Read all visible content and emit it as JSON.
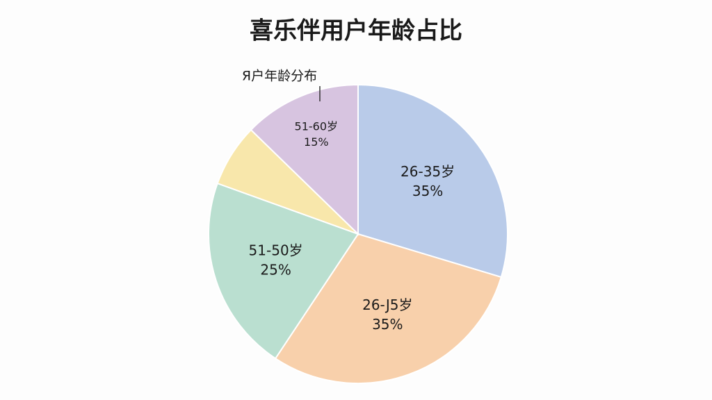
{
  "chart_data": {
    "type": "pie",
    "title": "喜乐伴用户年龄占比",
    "annotation": "Я户年龄分布",
    "categories": [
      "26-35岁",
      "26-J5岁",
      "51-50岁",
      null,
      "51-60岁"
    ],
    "values": [
      35,
      35,
      25,
      8,
      15
    ],
    "value_labels": [
      "35%",
      "35%",
      "25%",
      null,
      "15%"
    ],
    "colors": [
      "#b9cbe9",
      "#f8d0ab",
      "#badfd0",
      "#f8e7ab",
      "#d7c4e0"
    ]
  }
}
